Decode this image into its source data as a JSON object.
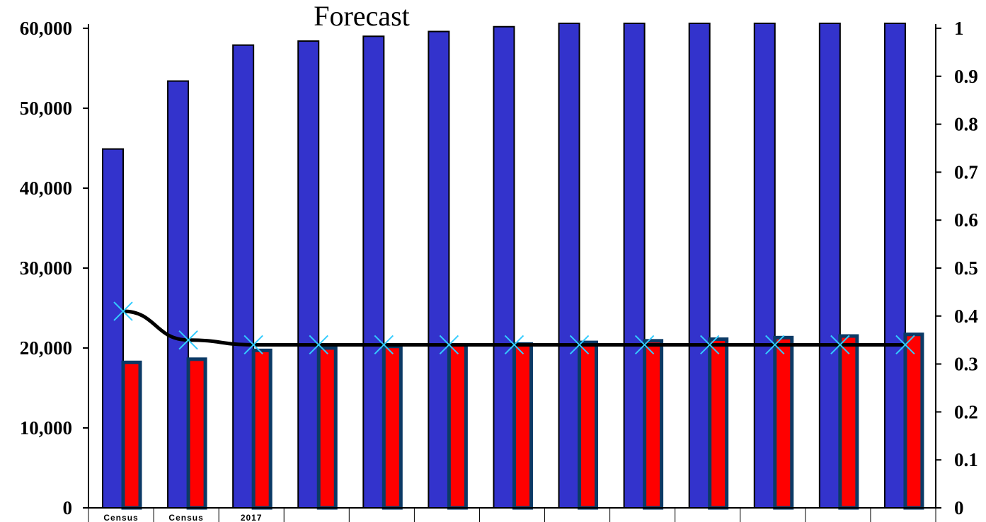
{
  "chart_data": {
    "type": "bar",
    "title": "Forecast",
    "categories": [
      "Census",
      "Census",
      "2017",
      "",
      "",
      "",
      "",
      "",
      "",
      "",
      "",
      "",
      ""
    ],
    "series": [
      {
        "axis": "left",
        "color": "#3333CC",
        "values": [
          44900,
          53400,
          57900,
          58400,
          59000,
          59600,
          60200,
          61000,
          61000,
          61000,
          61000,
          61000,
          61000
        ]
      },
      {
        "axis": "left",
        "color": "#FF0000",
        "values": [
          18200,
          18600,
          19700,
          20000,
          20200,
          20400,
          20500,
          20700,
          20900,
          21100,
          21300,
          21500,
          21700
        ]
      },
      {
        "type": "line",
        "axis": "right",
        "color": "#000000",
        "marker": "x",
        "marker_color": "#33CCFF",
        "values": [
          0.41,
          0.35,
          0.34,
          0.34,
          0.34,
          0.34,
          0.34,
          0.34,
          0.34,
          0.34,
          0.34,
          0.34,
          0.34
        ]
      }
    ],
    "y_left": {
      "min": 0,
      "max": 60000,
      "ticks": [
        "0",
        "10,000",
        "20,000",
        "30,000",
        "40,000",
        "50,000",
        "60,000"
      ]
    },
    "y_right": {
      "min": 0,
      "max": 1,
      "ticks": [
        "0",
        "0.1",
        "0.2",
        "0.3",
        "0.4",
        "0.5",
        "0.6",
        "0.7",
        "0.8",
        "0.9",
        "1"
      ]
    },
    "grid": false,
    "legend": "none"
  }
}
